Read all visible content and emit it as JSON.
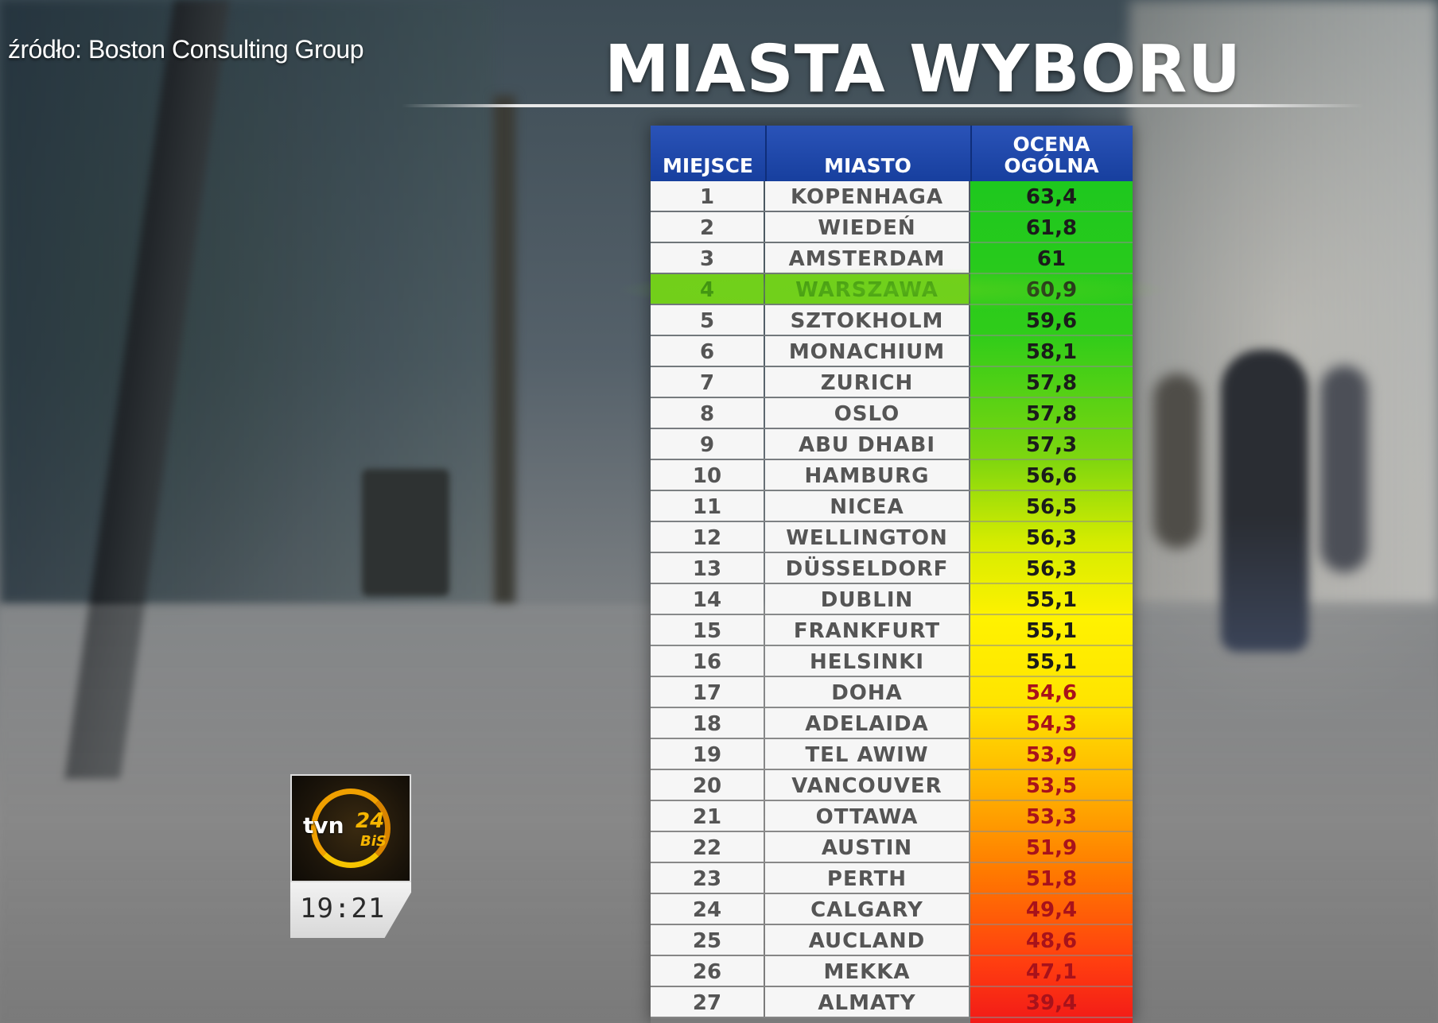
{
  "source": "źródło: Boston Consulting Group",
  "title": "MIASTA WYBORU",
  "table": {
    "headers": {
      "rank": "MIEJSCE",
      "city": "MIASTO",
      "score_line1": "OCENA",
      "score_line2": "OGÓLNA"
    },
    "highlight_color": "#72cf1a",
    "header_color": "#1f47a8",
    "rows": [
      {
        "rank": "1",
        "city": "KOPENHAGA",
        "score": "63,4"
      },
      {
        "rank": "2",
        "city": "WIEDEŃ",
        "score": "61,8"
      },
      {
        "rank": "3",
        "city": "AMSTERDAM",
        "score": "61"
      },
      {
        "rank": "4",
        "city": "WARSZAWA",
        "score": "60,9",
        "highlighted": true
      },
      {
        "rank": "5",
        "city": "SZTOKHOLM",
        "score": "59,6"
      },
      {
        "rank": "6",
        "city": "MONACHIUM",
        "score": "58,1"
      },
      {
        "rank": "7",
        "city": "ZURICH",
        "score": "57,8"
      },
      {
        "rank": "8",
        "city": "OSLO",
        "score": "57,8"
      },
      {
        "rank": "9",
        "city": "ABU DHABI",
        "score": "57,3"
      },
      {
        "rank": "10",
        "city": "HAMBURG",
        "score": "56,6"
      },
      {
        "rank": "11",
        "city": "NICEA",
        "score": "56,5"
      },
      {
        "rank": "12",
        "city": "WELLINGTON",
        "score": "56,3"
      },
      {
        "rank": "13",
        "city": "DÜSSELDORF",
        "score": "56,3"
      },
      {
        "rank": "14",
        "city": "DUBLIN",
        "score": "55,1"
      },
      {
        "rank": "15",
        "city": "FRANKFURT",
        "score": "55,1"
      },
      {
        "rank": "16",
        "city": "HELSINKI",
        "score": "55,1"
      },
      {
        "rank": "17",
        "city": "DOHA",
        "score": "54,6"
      },
      {
        "rank": "18",
        "city": "ADELAIDA",
        "score": "54,3"
      },
      {
        "rank": "19",
        "city": "TEL AWIW",
        "score": "53,9"
      },
      {
        "rank": "20",
        "city": "VANCOUVER",
        "score": "53,5"
      },
      {
        "rank": "21",
        "city": "OTTAWA",
        "score": "53,3"
      },
      {
        "rank": "22",
        "city": "AUSTIN",
        "score": "51,9"
      },
      {
        "rank": "23",
        "city": "PERTH",
        "score": "51,8"
      },
      {
        "rank": "24",
        "city": "CALGARY",
        "score": "49,4"
      },
      {
        "rank": "25",
        "city": "AUCLAND",
        "score": "48,6"
      },
      {
        "rank": "26",
        "city": "MEKKA",
        "score": "47,1"
      },
      {
        "rank": "27",
        "city": "ALMATY",
        "score": "39,4"
      }
    ]
  },
  "channel": {
    "logo_text": "tvn",
    "logo_number": "24",
    "logo_sub": "BiS",
    "time": "19:21"
  }
}
